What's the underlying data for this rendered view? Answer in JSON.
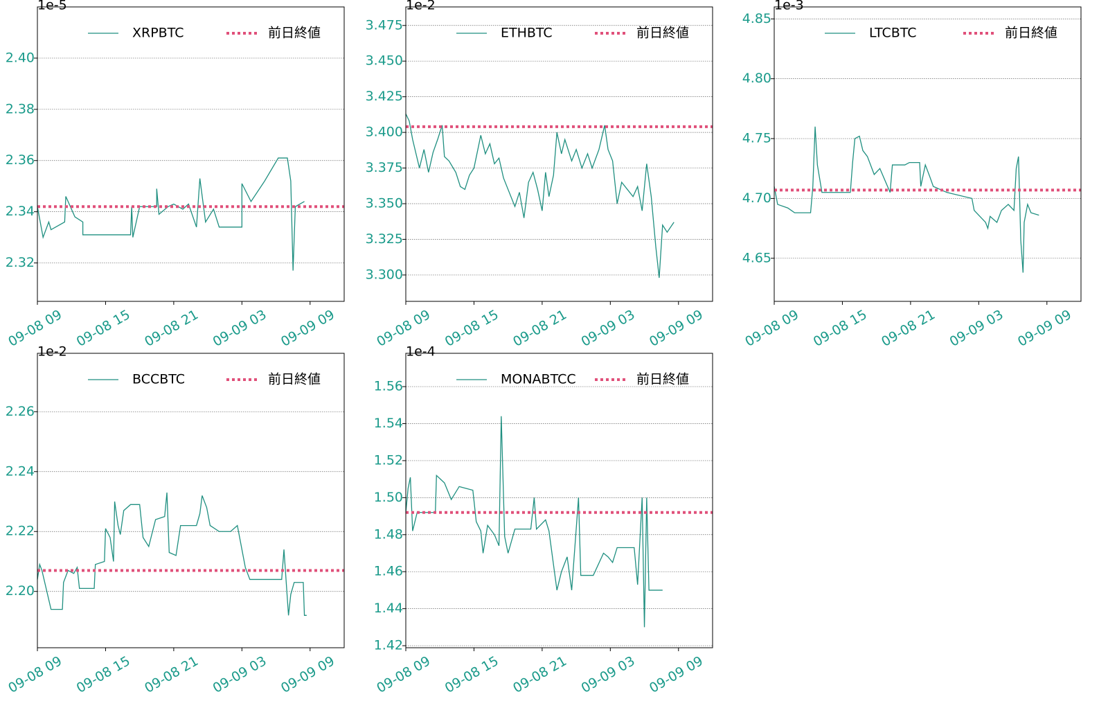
{
  "chart_data": [
    {
      "type": "line",
      "y_offset_label": "1e-5",
      "x": [
        0,
        0.5,
        1.0,
        1.2,
        2.4,
        2.5,
        3.3,
        4,
        4.0,
        8.2,
        8.3,
        8.4,
        9,
        10.5,
        10.5,
        10.7,
        11.5,
        12,
        12.8,
        13.3,
        14,
        14.3,
        14.8,
        15.5,
        16,
        18,
        18,
        18.8,
        20,
        21.2,
        22,
        22.3,
        22.5,
        22.7,
        23.5
      ],
      "series": [
        {
          "name": "XRPBTC",
          "color": "#1f8f80",
          "values": [
            2.342,
            2.33,
            2.336,
            2.333,
            2.336,
            2.346,
            2.338,
            2.336,
            2.331,
            2.331,
            2.342,
            2.33,
            2.342,
            2.342,
            2.349,
            2.339,
            2.342,
            2.343,
            2.341,
            2.343,
            2.334,
            2.353,
            2.336,
            2.341,
            2.334,
            2.334,
            2.351,
            2.344,
            2.352,
            2.361,
            2.361,
            2.352,
            2.317,
            2.342,
            2.344
          ]
        }
      ],
      "hline": {
        "name": "前日終値",
        "value": 2.342,
        "color": "#e0507a"
      },
      "xlim": [
        0,
        27
      ],
      "ylim": [
        2.305,
        2.42
      ],
      "xticks": [
        {
          "value": 0,
          "label": "09-08 09"
        },
        {
          "value": 6,
          "label": "09-08 15"
        },
        {
          "value": 12,
          "label": "09-08 21"
        },
        {
          "value": 18,
          "label": "09-09 03"
        },
        {
          "value": 24,
          "label": "09-09 09"
        }
      ],
      "yticks": [
        2.32,
        2.34,
        2.36,
        2.38,
        {
          "value": 2.4,
          "label": "2.40"
        }
      ],
      "grid": true,
      "legend": "upper right"
    },
    {
      "type": "line",
      "y_offset_label": "1e-2",
      "x": [
        0,
        0.3,
        0.6,
        0.9,
        1.2,
        1.6,
        2,
        2.4,
        2.8,
        3.2,
        3.4,
        3.8,
        4.4,
        4.8,
        5.2,
        5.6,
        6,
        6.6,
        7,
        7.4,
        7.8,
        8.2,
        8.6,
        9,
        9.6,
        10,
        10.4,
        10.8,
        11.2,
        11.6,
        12,
        12.3,
        12.6,
        13,
        13.3,
        13.7,
        14,
        14.6,
        15,
        15.5,
        16,
        16.4,
        17,
        17.5,
        17.8,
        18.2,
        18.6,
        19,
        19.5,
        20,
        20.4,
        20.8,
        21.2,
        21.6,
        22,
        22.3,
        22.6,
        23,
        23.6
      ],
      "series": [
        {
          "name": "ETHBTC",
          "color": "#1f8f80",
          "values": [
            3.413,
            3.408,
            3.395,
            3.385,
            3.375,
            3.388,
            3.372,
            3.386,
            3.395,
            3.405,
            3.383,
            3.38,
            3.372,
            3.362,
            3.36,
            3.37,
            3.375,
            3.398,
            3.385,
            3.392,
            3.378,
            3.382,
            3.368,
            3.36,
            3.348,
            3.358,
            3.34,
            3.365,
            3.372,
            3.36,
            3.345,
            3.372,
            3.355,
            3.37,
            3.4,
            3.385,
            3.395,
            3.38,
            3.388,
            3.375,
            3.385,
            3.375,
            3.388,
            3.405,
            3.388,
            3.38,
            3.35,
            3.365,
            3.36,
            3.355,
            3.362,
            3.345,
            3.378,
            3.355,
            3.32,
            3.298,
            3.335,
            3.33,
            3.337
          ]
        }
      ],
      "hline": {
        "name": "前日終値",
        "value": 3.404,
        "color": "#e0507a"
      },
      "xlim": [
        0,
        27
      ],
      "ylim": [
        3.2815,
        3.488
      ],
      "xticks": [
        {
          "value": 0,
          "label": "09-08 09"
        },
        {
          "value": 6,
          "label": "09-08 15"
        },
        {
          "value": 12,
          "label": "09-08 21"
        },
        {
          "value": 18,
          "label": "09-09 03"
        },
        {
          "value": 24,
          "label": "09-09 09"
        }
      ],
      "yticks": [
        {
          "value": 3.3,
          "label": "3.300"
        },
        3.325,
        {
          "value": 3.35,
          "label": "3.350"
        },
        3.375,
        {
          "value": 3.4,
          "label": "3.400"
        },
        3.425,
        {
          "value": 3.45,
          "label": "3.450"
        },
        3.475
      ],
      "grid": true,
      "legend": "upper right"
    },
    {
      "type": "line",
      "y_offset_label": "1e-3",
      "x": [
        0,
        0.3,
        1.2,
        1.8,
        3.2,
        3.4,
        3.6,
        3.8,
        4.2,
        6.7,
        6.9,
        7.1,
        7.5,
        7.8,
        8.2,
        8.8,
        9.3,
        10.2,
        10.4,
        11.5,
        11.9,
        12.8,
        12.9,
        13.3,
        13.7,
        14,
        15.2,
        17.4,
        17.6,
        18.6,
        18.8,
        19,
        19.6,
        20,
        20.6,
        21.1,
        21.3,
        21.5,
        21.7,
        21.9,
        22,
        22.3,
        22.6,
        23.3
      ],
      "series": [
        {
          "name": "LTCBTC",
          "color": "#1f8f80",
          "values": [
            4.71,
            4.695,
            4.692,
            4.688,
            4.688,
            4.71,
            4.76,
            4.728,
            4.705,
            4.705,
            4.73,
            4.75,
            4.752,
            4.74,
            4.735,
            4.72,
            4.725,
            4.705,
            4.728,
            4.728,
            4.73,
            4.73,
            4.71,
            4.728,
            4.718,
            4.71,
            4.705,
            4.7,
            4.69,
            4.68,
            4.675,
            4.685,
            4.68,
            4.69,
            4.695,
            4.69,
            4.725,
            4.735,
            4.665,
            4.638,
            4.68,
            4.695,
            4.688,
            4.686
          ]
        }
      ],
      "hline": {
        "name": "前日終値",
        "value": 4.707,
        "color": "#e0507a"
      },
      "xlim": [
        0,
        27
      ],
      "ylim": [
        4.614,
        4.86
      ],
      "xticks": [
        {
          "value": 0,
          "label": "09-08 09"
        },
        {
          "value": 6,
          "label": "09-08 15"
        },
        {
          "value": 12,
          "label": "09-08 21"
        },
        {
          "value": 18,
          "label": "09-09 03"
        },
        {
          "value": 24,
          "label": "09-09 09"
        }
      ],
      "yticks": [
        4.65,
        {
          "value": 4.7,
          "label": "4.70"
        },
        4.75,
        {
          "value": 4.8,
          "label": "4.80"
        },
        4.85
      ],
      "grid": true,
      "legend": "upper right"
    },
    {
      "type": "line",
      "y_offset_label": "1e-2",
      "x": [
        0,
        0.2,
        0.4,
        1.2,
        2.2,
        2.3,
        2.7,
        3.2,
        3.5,
        3.7,
        5,
        5.1,
        5.9,
        6,
        6.4,
        6.7,
        6.8,
        7.1,
        7.3,
        7.6,
        8.2,
        9,
        9.3,
        9.8,
        10.4,
        11.2,
        11.4,
        11.6,
        12.2,
        12.6,
        14,
        14.3,
        14.5,
        14.9,
        15.2,
        16,
        17,
        17.6,
        17.8,
        18.3,
        18.7,
        21.5,
        21.7,
        22.1,
        22.3,
        22.6,
        23.4,
        23.5,
        23.7
      ],
      "series": [
        {
          "name": "BCCBTC",
          "color": "#1f8f80",
          "values": [
            2.204,
            2.209,
            2.207,
            2.194,
            2.194,
            2.203,
            2.207,
            2.206,
            2.208,
            2.201,
            2.201,
            2.209,
            2.21,
            2.221,
            2.218,
            2.21,
            2.23,
            2.222,
            2.219,
            2.227,
            2.229,
            2.229,
            2.218,
            2.215,
            2.224,
            2.225,
            2.233,
            2.213,
            2.212,
            2.222,
            2.222,
            2.226,
            2.232,
            2.228,
            2.222,
            2.22,
            2.22,
            2.222,
            2.218,
            2.208,
            2.204,
            2.204,
            2.214,
            2.192,
            2.199,
            2.203,
            2.203,
            2.192,
            2.192
          ]
        }
      ],
      "hline": {
        "name": "前日終値",
        "value": 2.207,
        "color": "#e0507a"
      },
      "xlim": [
        0,
        27
      ],
      "ylim": [
        2.1812,
        2.2795
      ],
      "xticks": [
        {
          "value": 0,
          "label": "09-08 09"
        },
        {
          "value": 6,
          "label": "09-08 15"
        },
        {
          "value": 12,
          "label": "09-08 21"
        },
        {
          "value": 18,
          "label": "09-09 03"
        },
        {
          "value": 24,
          "label": "09-09 09"
        }
      ],
      "yticks": [
        {
          "value": 2.2,
          "label": "2.20"
        },
        2.22,
        2.24,
        2.26
      ],
      "grid": true,
      "legend": "upper right"
    },
    {
      "type": "line",
      "y_offset_label": "1e-4",
      "x": [
        0,
        0.2,
        0.4,
        0.6,
        1,
        2.6,
        2.7,
        3.4,
        4,
        4.7,
        5.9,
        6.2,
        6.6,
        6.8,
        7.2,
        7.8,
        8.2,
        8.4,
        8.7,
        9,
        9.6,
        11,
        11.3,
        11.5,
        12.3,
        12.6,
        13.3,
        13.7,
        14.2,
        14.6,
        15.2,
        15.4,
        16.5,
        17.4,
        17.8,
        18.2,
        18.6,
        20.1,
        20.4,
        20.8,
        21,
        21.2,
        21.4,
        22.6
      ],
      "series": [
        {
          "name": "MONABTCC",
          "color": "#1f8f80",
          "values": [
            1.492,
            1.505,
            1.511,
            1.482,
            1.492,
            1.492,
            1.512,
            1.508,
            1.499,
            1.506,
            1.504,
            1.487,
            1.482,
            1.47,
            1.485,
            1.48,
            1.474,
            1.544,
            1.479,
            1.47,
            1.483,
            1.483,
            1.5,
            1.483,
            1.488,
            1.482,
            1.45,
            1.46,
            1.468,
            1.45,
            1.5,
            1.458,
            1.458,
            1.47,
            1.468,
            1.465,
            1.473,
            1.473,
            1.453,
            1.5,
            1.43,
            1.5,
            1.45,
            1.45
          ]
        }
      ],
      "hline": {
        "name": "前日終値",
        "value": 1.492,
        "color": "#e0507a"
      },
      "xlim": [
        0,
        27
      ],
      "ylim": [
        1.4189,
        1.578
      ],
      "xticks": [
        {
          "value": 0,
          "label": "09-08 09"
        },
        {
          "value": 6,
          "label": "09-08 15"
        },
        {
          "value": 12,
          "label": "09-08 21"
        },
        {
          "value": 18,
          "label": "09-09 03"
        },
        {
          "value": 24,
          "label": "09-09 09"
        }
      ],
      "yticks": [
        1.42,
        1.44,
        1.46,
        1.48,
        {
          "value": 1.5,
          "label": "1.50"
        },
        1.52,
        1.54,
        1.56
      ],
      "grid": true,
      "legend": "upper right"
    }
  ]
}
